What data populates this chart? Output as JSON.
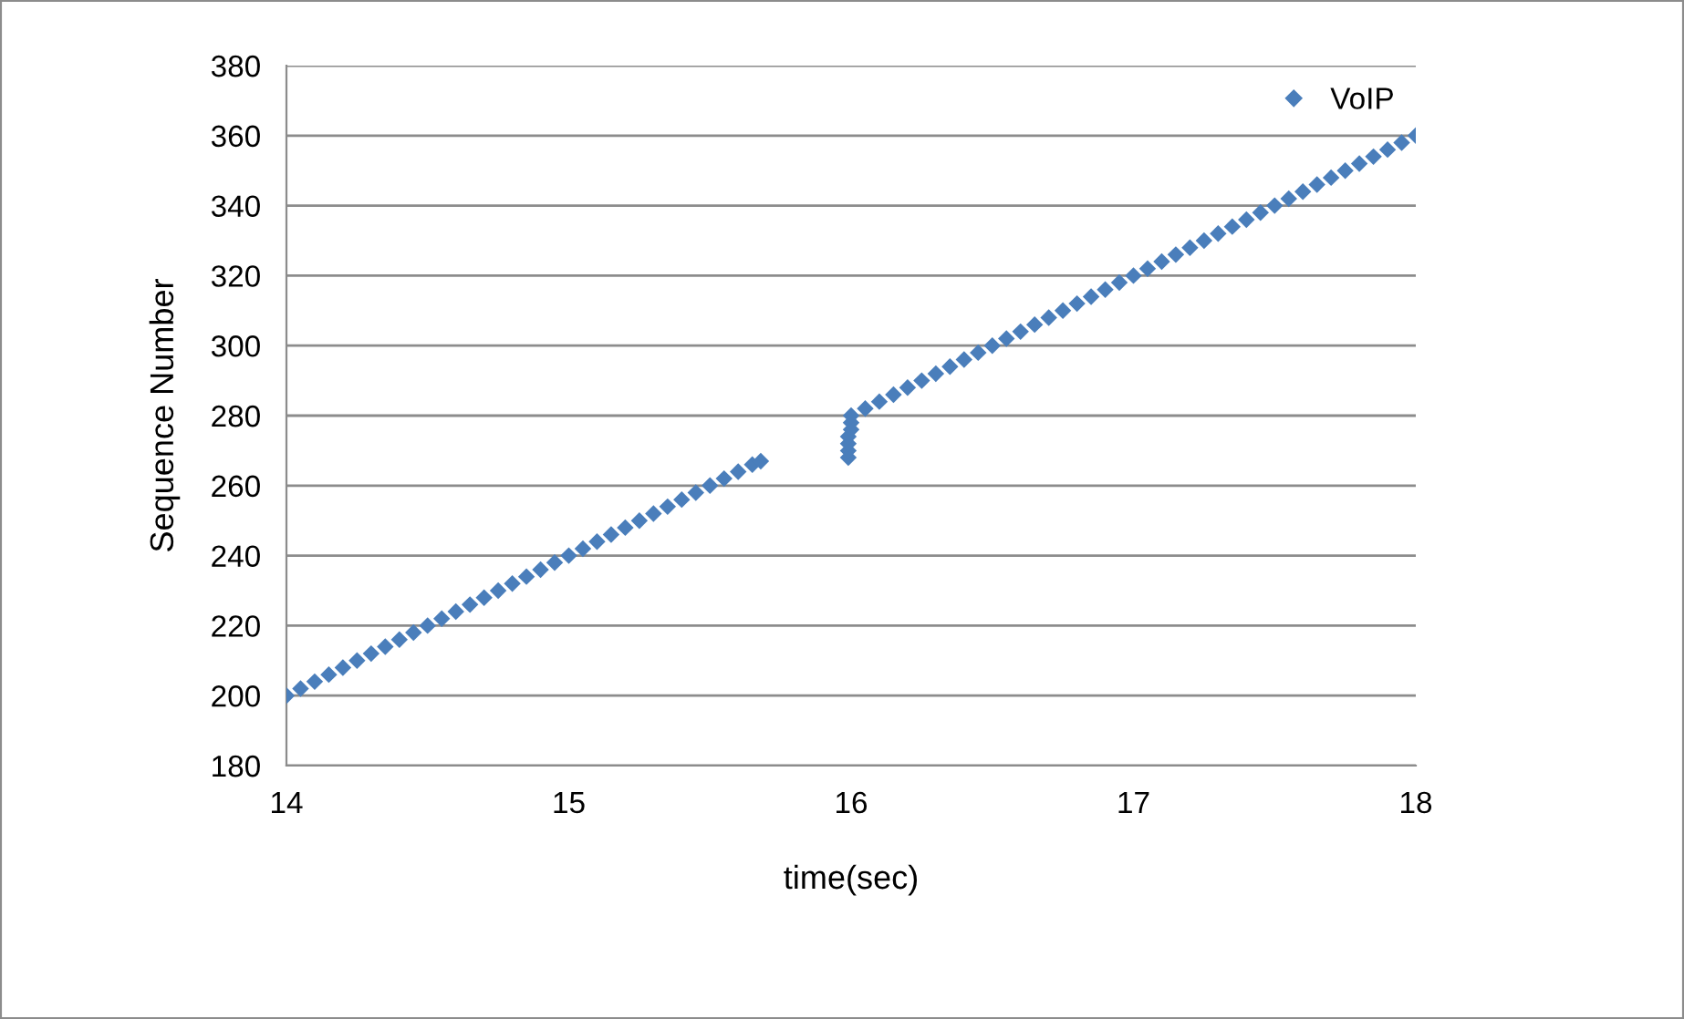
{
  "chart_data": {
    "type": "scatter",
    "xlabel": "time(sec)",
    "ylabel": "Sequence Number",
    "xlim": [
      14,
      18
    ],
    "xticks": [
      14,
      15,
      16,
      17,
      18
    ],
    "ylim": [
      180,
      380
    ],
    "yticks": [
      180,
      200,
      220,
      240,
      260,
      280,
      300,
      320,
      340,
      360,
      380
    ],
    "grid": "y",
    "legend": "top right",
    "marker": "diamond",
    "series": [
      {
        "name": "VoIP",
        "color": "#4a7ebb",
        "x": [
          14.0,
          14.05,
          14.1,
          14.15,
          14.2,
          14.25,
          14.3,
          14.35,
          14.4,
          14.45,
          14.5,
          14.55,
          14.6,
          14.65,
          14.7,
          14.75,
          14.8,
          14.85,
          14.9,
          14.95,
          15.0,
          15.05,
          15.1,
          15.15,
          15.2,
          15.25,
          15.3,
          15.35,
          15.4,
          15.45,
          15.5,
          15.55,
          15.6,
          15.65,
          15.68,
          15.99,
          15.99,
          15.99,
          15.99,
          16.0,
          16.0,
          16.0,
          16.05,
          16.1,
          16.15,
          16.2,
          16.25,
          16.3,
          16.35,
          16.4,
          16.45,
          16.5,
          16.55,
          16.6,
          16.65,
          16.7,
          16.75,
          16.8,
          16.85,
          16.9,
          16.95,
          17.0,
          17.05,
          17.1,
          17.15,
          17.2,
          17.25,
          17.3,
          17.35,
          17.4,
          17.45,
          17.5,
          17.55,
          17.6,
          17.65,
          17.7,
          17.75,
          17.8,
          17.85,
          17.9,
          17.95,
          18.0
        ],
        "values": [
          200,
          202,
          204,
          206,
          208,
          210,
          212,
          214,
          216,
          218,
          220,
          222,
          224,
          226,
          228,
          230,
          232,
          234,
          236,
          238,
          240,
          242,
          244,
          246,
          248,
          250,
          252,
          254,
          256,
          258,
          260,
          262,
          264,
          266,
          267,
          268,
          270,
          272,
          274,
          276,
          278,
          280,
          282,
          284,
          286,
          288,
          290,
          292,
          294,
          296,
          298,
          300,
          302,
          304,
          306,
          308,
          310,
          312,
          314,
          316,
          318,
          320,
          322,
          324,
          326,
          328,
          330,
          332,
          334,
          336,
          338,
          340,
          342,
          344,
          346,
          348,
          350,
          352,
          354,
          356,
          358,
          360
        ]
      }
    ]
  }
}
